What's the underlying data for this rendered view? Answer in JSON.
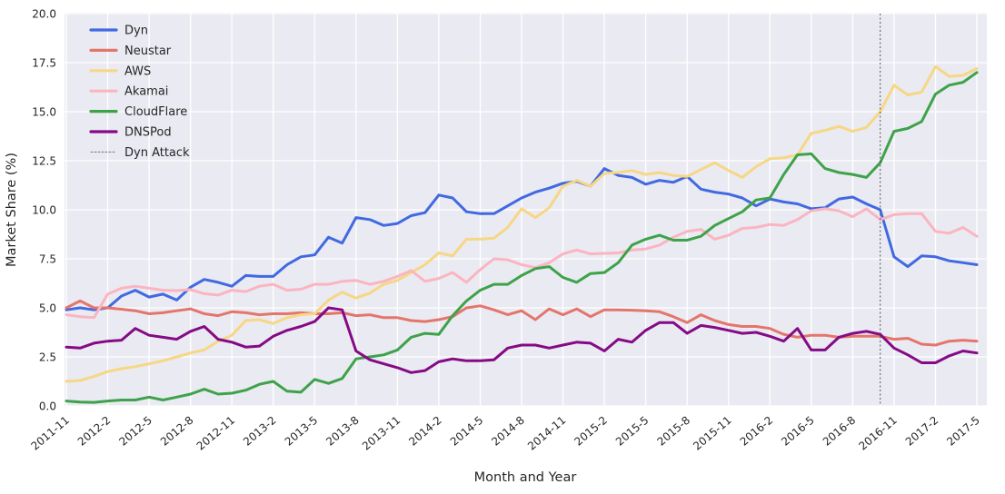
{
  "chart_data": {
    "type": "line",
    "title": "",
    "xlabel": "Month and Year",
    "ylabel": "Market Share (%)",
    "ylim": [
      0.0,
      20.0
    ],
    "yticks": [
      0.0,
      2.5,
      5.0,
      7.5,
      10.0,
      12.5,
      15.0,
      17.5,
      20.0
    ],
    "x_tick_labels": [
      "2011-11",
      "2012-2",
      "2012-5",
      "2012-8",
      "2012-11",
      "2013-2",
      "2013-5",
      "2013-8",
      "2013-11",
      "2014-2",
      "2014-5",
      "2014-8",
      "2014-11",
      "2015-2",
      "2015-5",
      "2015-8",
      "2015-11",
      "2016-2",
      "2016-5",
      "2016-8",
      "2016-11",
      "2017-2",
      "2017-5"
    ],
    "x_tick_month_step": 3,
    "x_monthly_range": [
      "2011-11",
      "2017-5"
    ],
    "grid": true,
    "legend_position": "upper-left",
    "background_color": "#eaeaf2",
    "grid_color": "#ffffff",
    "text_color": "#262626",
    "series": [
      {
        "name": "Dyn",
        "color": "#4169e1",
        "values": [
          4.9,
          5.0,
          4.9,
          5.0,
          5.6,
          5.9,
          5.55,
          5.7,
          5.4,
          6.05,
          6.45,
          6.3,
          6.1,
          6.65,
          6.6,
          6.6,
          7.2,
          7.6,
          7.7,
          8.6,
          8.3,
          9.6,
          9.5,
          9.2,
          9.3,
          9.7,
          9.85,
          10.75,
          10.6,
          9.9,
          9.8,
          9.8,
          10.2,
          10.6,
          10.9,
          11.1,
          11.35,
          11.45,
          11.2,
          12.1,
          11.75,
          11.65,
          11.3,
          11.5,
          11.4,
          11.7,
          11.05,
          10.9,
          10.8,
          10.6,
          10.2,
          10.55,
          10.4,
          10.3,
          10.05,
          10.1,
          10.55,
          10.65,
          10.3,
          10.0,
          7.6,
          7.1,
          7.65,
          7.6,
          7.4,
          7.3,
          7.2
        ]
      },
      {
        "name": "Neustar",
        "color": "#e4756b",
        "values": [
          5.0,
          5.35,
          5.0,
          5.0,
          4.93,
          4.85,
          4.7,
          4.75,
          4.85,
          4.95,
          4.7,
          4.6,
          4.8,
          4.75,
          4.65,
          4.7,
          4.7,
          4.75,
          4.7,
          4.7,
          4.75,
          4.6,
          4.65,
          4.5,
          4.5,
          4.35,
          4.3,
          4.4,
          4.55,
          5.0,
          5.1,
          4.9,
          4.65,
          4.85,
          4.4,
          4.95,
          4.65,
          4.95,
          4.55,
          4.9,
          4.9,
          4.88,
          4.85,
          4.8,
          4.55,
          4.25,
          4.65,
          4.35,
          4.15,
          4.05,
          4.05,
          3.95,
          3.65,
          3.5,
          3.6,
          3.6,
          3.5,
          3.55,
          3.55,
          3.55,
          3.4,
          3.45,
          3.15,
          3.1,
          3.3,
          3.35,
          3.3
        ]
      },
      {
        "name": "AWS",
        "color": "#f6d784",
        "values": [
          1.25,
          1.3,
          1.5,
          1.75,
          1.9,
          2.0,
          2.15,
          2.3,
          2.5,
          2.7,
          2.85,
          3.3,
          3.6,
          4.35,
          4.4,
          4.2,
          4.5,
          4.65,
          4.7,
          5.4,
          5.8,
          5.5,
          5.75,
          6.2,
          6.4,
          6.8,
          7.2,
          7.8,
          7.65,
          8.5,
          8.5,
          8.55,
          9.1,
          10.05,
          9.6,
          10.1,
          11.2,
          11.5,
          11.2,
          11.85,
          11.9,
          12.0,
          11.8,
          11.9,
          11.75,
          11.7,
          12.05,
          12.4,
          12.0,
          11.65,
          12.2,
          12.6,
          12.65,
          12.8,
          13.9,
          14.05,
          14.25,
          14.0,
          14.2,
          15.0,
          16.35,
          15.85,
          16.0,
          17.3,
          16.8,
          16.85,
          17.2
        ]
      },
      {
        "name": "Akamai",
        "color": "#fab5c0",
        "values": [
          4.65,
          4.55,
          4.5,
          5.7,
          6.0,
          6.1,
          6.0,
          5.9,
          5.88,
          5.93,
          5.72,
          5.65,
          5.9,
          5.83,
          6.1,
          6.2,
          5.9,
          5.95,
          6.2,
          6.2,
          6.35,
          6.4,
          6.2,
          6.35,
          6.6,
          6.9,
          6.35,
          6.5,
          6.8,
          6.3,
          6.95,
          7.5,
          7.45,
          7.2,
          7.05,
          7.3,
          7.75,
          7.95,
          7.75,
          7.78,
          7.8,
          7.95,
          8.0,
          8.2,
          8.6,
          8.9,
          9.0,
          8.5,
          8.7,
          9.05,
          9.1,
          9.25,
          9.2,
          9.5,
          9.95,
          10.05,
          9.95,
          9.65,
          10.05,
          9.5,
          9.75,
          9.8,
          9.8,
          8.9,
          8.8,
          9.1,
          8.65
        ]
      },
      {
        "name": "CloudFlare",
        "color": "#3da24a",
        "values": [
          0.25,
          0.2,
          0.18,
          0.25,
          0.3,
          0.3,
          0.45,
          0.3,
          0.45,
          0.6,
          0.85,
          0.6,
          0.65,
          0.8,
          1.1,
          1.25,
          0.75,
          0.7,
          1.35,
          1.15,
          1.4,
          2.4,
          2.5,
          2.6,
          2.85,
          3.5,
          3.7,
          3.65,
          4.6,
          5.35,
          5.9,
          6.2,
          6.2,
          6.65,
          7.0,
          7.1,
          6.55,
          6.3,
          6.75,
          6.8,
          7.3,
          8.2,
          8.5,
          8.7,
          8.45,
          8.45,
          8.65,
          9.2,
          9.55,
          9.9,
          10.5,
          10.6,
          11.8,
          12.8,
          12.85,
          12.1,
          11.9,
          11.8,
          11.65,
          12.4,
          14.0,
          14.15,
          14.5,
          15.9,
          16.35,
          16.5,
          17.0
        ]
      },
      {
        "name": "DNSPod",
        "color": "#850a85",
        "values": [
          3.0,
          2.95,
          3.2,
          3.3,
          3.35,
          3.95,
          3.6,
          3.5,
          3.4,
          3.8,
          4.05,
          3.4,
          3.25,
          3.0,
          3.05,
          3.55,
          3.85,
          4.05,
          4.3,
          5.0,
          4.9,
          2.8,
          2.35,
          2.15,
          1.95,
          1.7,
          1.8,
          2.25,
          2.4,
          2.3,
          2.3,
          2.35,
          2.95,
          3.1,
          3.1,
          2.95,
          3.1,
          3.25,
          3.2,
          2.8,
          3.4,
          3.25,
          3.85,
          4.25,
          4.25,
          3.7,
          4.1,
          4.0,
          3.85,
          3.7,
          3.75,
          3.55,
          3.3,
          3.95,
          2.85,
          2.85,
          3.5,
          3.7,
          3.8,
          3.65,
          2.95,
          2.6,
          2.2,
          2.2,
          2.55,
          2.8,
          2.7
        ]
      }
    ],
    "annotation": {
      "label": "Dyn Attack",
      "x_value": "2016-10",
      "month_index": 59,
      "style": "dashed-vertical-line",
      "color": "#555555"
    }
  }
}
